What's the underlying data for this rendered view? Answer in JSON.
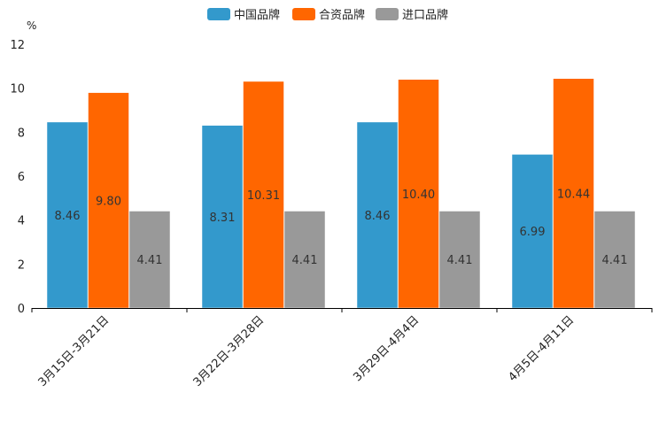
{
  "chart_data": {
    "type": "bar",
    "title": "",
    "xlabel": "",
    "ylabel": "%",
    "ylim": [
      0,
      12
    ],
    "yticks": [
      0,
      2,
      4,
      6,
      8,
      10,
      12
    ],
    "grid": false,
    "legend_position": "top-center",
    "categories": [
      "3月15日-3月21日",
      "3月22日-3月28日",
      "3月29日-4月4日",
      "4月5日-4月11日"
    ],
    "series": [
      {
        "name": "中国品牌",
        "color": "#3399CC",
        "values": [
          8.46,
          8.31,
          8.46,
          6.99
        ]
      },
      {
        "name": "合资品牌",
        "color": "#FF6600",
        "values": [
          9.8,
          10.31,
          10.4,
          10.44
        ]
      },
      {
        "name": "进口品牌",
        "color": "#999999",
        "values": [
          4.41,
          4.41,
          4.41,
          4.41
        ]
      }
    ],
    "value_labels": [
      [
        "8.46",
        "8.31",
        "8.46",
        "6.99"
      ],
      [
        "9.80",
        "10.31",
        "10.40",
        "10.44"
      ],
      [
        "4.41",
        "4.41",
        "4.41",
        "4.41"
      ]
    ]
  }
}
